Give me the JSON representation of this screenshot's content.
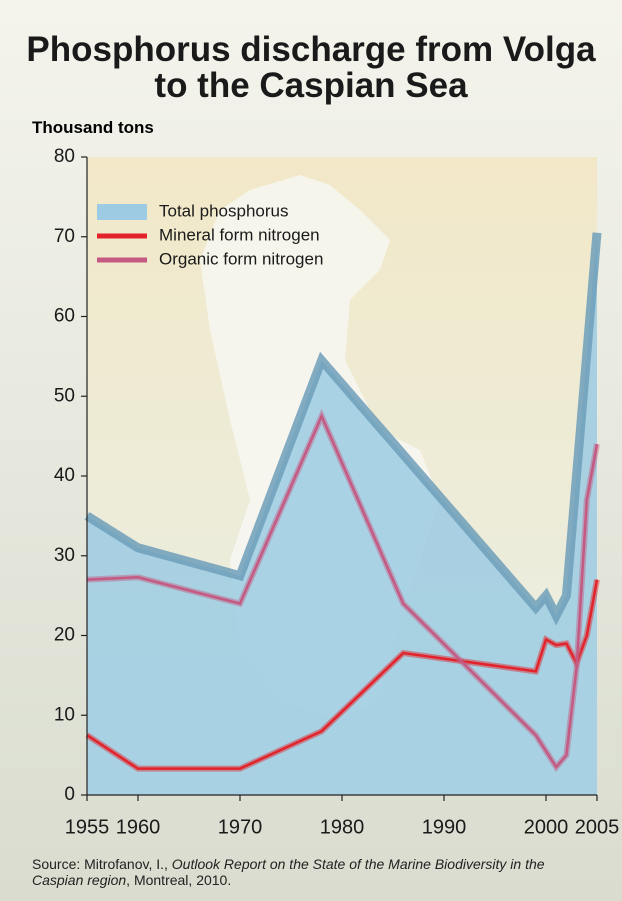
{
  "chart_data": {
    "type": "line",
    "title": "Phosphorus discharge from Volga to the Caspian Sea",
    "y_label": "Thousand tons",
    "xlim": [
      1955,
      2005
    ],
    "xticks": [
      1955,
      1960,
      1970,
      1980,
      1990,
      2000,
      2005
    ],
    "ylim": [
      0,
      80
    ],
    "yticks": [
      0,
      10,
      20,
      30,
      40,
      50,
      60,
      70,
      80
    ],
    "legend": "upper left",
    "series": [
      {
        "name": "Total phosphorus",
        "kind": "area",
        "color": "#9ccbe3",
        "edge_color": "#6e9fba",
        "x": [
          1955,
          1960,
          1970,
          1978,
          1999,
          2000,
          2001,
          2002,
          2005
        ],
        "values": [
          35,
          31,
          27.5,
          54.5,
          23.5,
          25,
          22.5,
          25,
          70.5
        ]
      },
      {
        "name": "Mineral form nitrogen",
        "kind": "line",
        "color": "#e3232b",
        "x": [
          1955,
          1960,
          1970,
          1978,
          1986,
          1999,
          2000,
          2001,
          2002,
          2003,
          2004,
          2005
        ],
        "values": [
          7.5,
          3.3,
          3.3,
          8,
          17.8,
          15.5,
          19.5,
          18.8,
          19,
          16.5,
          20,
          27
        ]
      },
      {
        "name": "Organic form nitrogen",
        "kind": "line",
        "color": "#c45a82",
        "x": [
          1955,
          1960,
          1970,
          1978,
          1986,
          1999,
          2001,
          2002,
          2003,
          2004,
          2005
        ],
        "values": [
          27,
          27.3,
          24,
          47.5,
          24,
          7.5,
          3.5,
          5,
          16,
          37,
          44
        ]
      }
    ],
    "source": {
      "prefix": "Source: Mitrofanov, I., ",
      "italic": "Outlook Report on the State of the Marine Biodiversity in the Caspian region",
      "suffix": ", Montreal, 2010."
    }
  }
}
